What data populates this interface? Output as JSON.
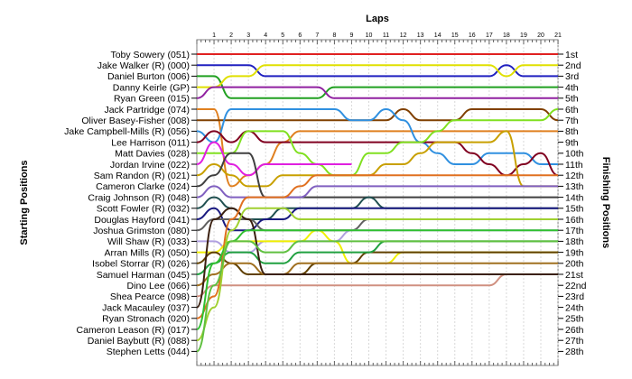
{
  "chart_data": {
    "type": "line",
    "title": "Laps",
    "ylabel_left": "Starting Positions",
    "ylabel_right": "Finishing Positions",
    "laps": [
      1,
      2,
      3,
      4,
      5,
      6,
      7,
      8,
      9,
      10,
      11,
      12,
      13,
      14,
      15,
      16,
      17,
      18,
      19,
      20,
      21
    ],
    "start_labels": [
      "Toby Sowery (051)",
      "Jake Walker (R) (000)",
      "Daniel Burton (006)",
      "Danny Keirle (GP)",
      "Ryan Green (015)",
      "Jack Partridge (074)",
      "Oliver Basey-Fisher (008)",
      "Jake Campbell-Mills (R) (056)",
      "Lee Harrison (011)",
      "Matt Davies (028)",
      "Jordan Irvine (022)",
      "Sam Randon (R) (021)",
      "Cameron Clarke (024)",
      "Craig Johnson (R) (048)",
      "Scott Fowler (R) (032)",
      "Douglas Hayford (041)",
      "Joshua Grimston (080)",
      "Will Shaw (R) (033)",
      "Arran Mills (R) (050)",
      "Isobel Storrar (R) (026)",
      "Samuel Harman (045)",
      "Dino Lee (066)",
      "Shea Pearce (098)",
      "Jack Macauley (037)",
      "Ryan Stronach (020)",
      "Cameron Leason (R) (017)",
      "Daniel Baybutt (R) (088)",
      "Stephen Letts (044)"
    ],
    "finish_labels": [
      "1st",
      "2nd",
      "3rd",
      "4th",
      "5th",
      "6th",
      "7th",
      "8th",
      "9th",
      "10th",
      "11th",
      "12th",
      "13th",
      "14th",
      "15th",
      "16th",
      "17th",
      "18th",
      "19th",
      "20th",
      "21st",
      "22nd",
      "23rd",
      "24th",
      "25th",
      "26th",
      "27th",
      "28th"
    ],
    "series": [
      {
        "color": "#e02020",
        "positions": [
          1,
          1,
          1,
          1,
          1,
          1,
          1,
          1,
          1,
          1,
          1,
          1,
          1,
          1,
          1,
          1,
          1,
          1,
          1,
          1,
          1,
          1
        ]
      },
      {
        "color": "#2020c0",
        "positions": [
          2,
          2,
          2,
          2,
          3,
          3,
          3,
          3,
          3,
          3,
          3,
          3,
          3,
          3,
          3,
          3,
          3,
          3,
          2,
          3,
          3,
          3
        ]
      },
      {
        "color": "#20a020",
        "positions": [
          3,
          3,
          5,
          5,
          5,
          5,
          5,
          5,
          4,
          4,
          4,
          4,
          4,
          4,
          4,
          4,
          4,
          4,
          4,
          4,
          4,
          4
        ]
      },
      {
        "color": "#e0e000",
        "positions": [
          4,
          4,
          3,
          3,
          2,
          2,
          2,
          2,
          2,
          2,
          2,
          2,
          2,
          2,
          2,
          2,
          2,
          2,
          3,
          2,
          2,
          2
        ]
      },
      {
        "color": "#9020a0",
        "positions": [
          5,
          4,
          4,
          4,
          4,
          4,
          4,
          4,
          5,
          5,
          5,
          5,
          5,
          5,
          5,
          5,
          5,
          5,
          5,
          5,
          5,
          5
        ]
      },
      {
        "color": "#e08020",
        "positions": [
          6,
          6,
          13,
          12,
          11,
          9,
          8,
          8,
          8,
          8,
          8,
          8,
          8,
          8,
          8,
          8,
          8,
          8,
          8,
          8,
          8,
          8
        ]
      },
      {
        "color": "#804000",
        "positions": [
          7,
          7,
          7,
          7,
          7,
          7,
          7,
          7,
          7,
          7,
          7,
          7,
          6,
          7,
          7,
          7,
          6,
          6,
          6,
          6,
          6,
          7
        ]
      },
      {
        "color": "#3090e0",
        "positions": [
          8,
          9,
          6,
          6,
          6,
          6,
          6,
          6,
          6,
          7,
          7,
          6,
          7,
          9,
          10,
          11,
          11,
          10,
          10,
          10,
          11,
          11
        ]
      },
      {
        "color": "#800020",
        "positions": [
          9,
          8,
          9,
          8,
          9,
          9,
          9,
          9,
          9,
          9,
          9,
          9,
          9,
          9,
          9,
          9,
          10,
          11,
          12,
          11,
          10,
          12
        ]
      },
      {
        "color": "#80e020",
        "positions": [
          10,
          10,
          10,
          8,
          8,
          8,
          10,
          11,
          12,
          12,
          10,
          10,
          9,
          9,
          8,
          7,
          7,
          7,
          7,
          7,
          7,
          6
        ]
      },
      {
        "color": "#e020e0",
        "positions": [
          11,
          9,
          11,
          12,
          11,
          11,
          11,
          11,
          11,
          11
        ]
      },
      {
        "color": "#c8a000",
        "positions": [
          12,
          11,
          12,
          13,
          13,
          12,
          12,
          12,
          12,
          12,
          12,
          11,
          11,
          10,
          9,
          9,
          9,
          9,
          8,
          13,
          13,
          13
        ]
      },
      {
        "color": "#404040",
        "positions": [
          13,
          12,
          10,
          10,
          14,
          14,
          14,
          14,
          14,
          14,
          14,
          14,
          14,
          14,
          14,
          14,
          14,
          14,
          14,
          14,
          14,
          14
        ]
      },
      {
        "color": "#8060c0",
        "positions": [
          14,
          13,
          14,
          14,
          14,
          14,
          14,
          13,
          13,
          13,
          13,
          13,
          13,
          13,
          13,
          13,
          13,
          13,
          13,
          13,
          13,
          13
        ]
      },
      {
        "color": "#205050",
        "positions": [
          15,
          14,
          15,
          16,
          16,
          15,
          15,
          15,
          15,
          15,
          14,
          15,
          15,
          15,
          15,
          15,
          15,
          15,
          15,
          15,
          15,
          15
        ]
      },
      {
        "color": "#1a1a80",
        "positions": [
          16,
          15,
          17,
          17,
          16,
          16,
          15,
          15,
          15,
          15,
          15,
          15,
          15,
          15,
          15,
          15,
          15,
          15,
          15,
          15,
          15,
          15
        ]
      },
      {
        "color": "#606060",
        "positions": [
          17,
          16,
          16,
          16,
          17,
          17,
          17,
          17,
          17,
          17,
          16,
          16,
          16,
          16,
          16,
          16,
          16,
          16,
          16,
          16,
          16,
          16
        ]
      },
      {
        "color": "#b0a0e0",
        "positions": [
          18,
          18,
          19,
          19,
          18,
          18,
          18,
          18,
          18,
          17,
          17,
          17,
          17,
          17,
          17,
          17,
          17,
          17,
          17,
          17,
          17,
          17
        ]
      },
      {
        "color": "#f0f000",
        "positions": [
          19,
          19,
          18,
          18,
          18,
          18,
          18,
          17,
          18,
          20,
          20,
          20,
          19,
          19,
          19,
          19,
          19,
          19,
          19,
          19,
          19,
          19
        ]
      },
      {
        "color": "#604000",
        "positions": [
          20,
          19,
          20,
          21,
          21,
          21,
          21,
          20,
          20,
          20,
          19,
          19,
          19,
          19,
          19,
          19,
          19,
          19,
          19,
          19,
          19,
          19
        ]
      },
      {
        "color": "#20a040",
        "positions": [
          21,
          20,
          19,
          19,
          20,
          20,
          19,
          19,
          19,
          19,
          19,
          18,
          18,
          18,
          18,
          18,
          18,
          18,
          18,
          18,
          18,
          18
        ]
      },
      {
        "color": "#a07020",
        "positions": [
          22,
          21,
          20,
          20,
          21,
          21,
          20,
          20,
          20,
          20,
          20,
          20,
          20,
          20,
          20,
          20,
          20,
          20,
          20,
          20,
          20,
          20
        ]
      },
      {
        "color": "#d09080",
        "positions": [
          23,
          22,
          22,
          22,
          22,
          22,
          22,
          22,
          22,
          22,
          22,
          22,
          22,
          22,
          22,
          22,
          22,
          22,
          21,
          21,
          21,
          21
        ]
      },
      {
        "color": "#3a2010",
        "positions": [
          24,
          16,
          15,
          16,
          21,
          21,
          21,
          21,
          21,
          21,
          21,
          21,
          21,
          21,
          21,
          21,
          21,
          21,
          21,
          21,
          21,
          21
        ]
      },
      {
        "color": "#e07020",
        "positions": [
          25,
          23,
          16,
          14,
          14,
          14,
          13,
          12,
          12,
          12,
          12,
          12,
          12,
          12,
          12,
          12,
          12,
          12,
          12,
          12,
          12,
          12
        ]
      },
      {
        "color": "#30c030",
        "positions": [
          26,
          20,
          18,
          17,
          17,
          17,
          17,
          17,
          17,
          17,
          17,
          17,
          17,
          17,
          17,
          17,
          17,
          17,
          17,
          17,
          17,
          17
        ]
      },
      {
        "color": "#a0d030",
        "positions": [
          27,
          24,
          17,
          15,
          15,
          15,
          16,
          16,
          16,
          16,
          16,
          16,
          16,
          16,
          16,
          16,
          16,
          16,
          16,
          16,
          16,
          16
        ]
      },
      {
        "color": "#60c040",
        "positions": [
          28,
          22,
          18,
          18,
          19,
          19,
          18,
          18,
          18,
          18,
          18,
          18,
          18,
          18,
          18,
          18,
          18,
          18,
          18,
          18,
          18,
          18
        ]
      }
    ]
  }
}
